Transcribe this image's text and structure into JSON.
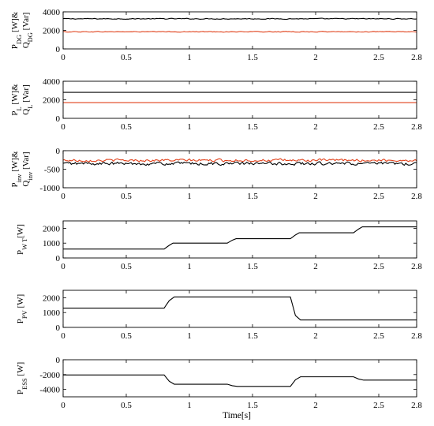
{
  "chart_data": [
    {
      "type": "line",
      "ylabel": [
        "P",
        "DG",
        " [W]&",
        "Q",
        "DG",
        " [Var]"
      ],
      "xlim": [
        0,
        2.8
      ],
      "ylim": [
        0,
        4000
      ],
      "xticks": [
        "0",
        "0.5",
        "1",
        "1.5",
        "2",
        "2.5",
        "2.8"
      ],
      "yticks": [
        0,
        2000,
        4000
      ],
      "ytick_labels": [
        "0",
        "2000",
        "4000"
      ],
      "grid": false,
      "series": [
        {
          "color": "#000000",
          "style": "noise",
          "x": [
            0,
            2.8
          ],
          "y": [
            3250,
            3250
          ],
          "noise": 70
        },
        {
          "color": "#e0401a",
          "style": "noise",
          "x": [
            0,
            2.8
          ],
          "y": [
            1850,
            1850
          ],
          "noise": 60
        }
      ]
    },
    {
      "type": "line",
      "ylabel": [
        "P",
        "L",
        " [W]&",
        "Q",
        "L",
        " [Var]"
      ],
      "xlim": [
        0,
        2.8
      ],
      "ylim": [
        0,
        4000
      ],
      "xticks": [
        "0",
        "0.5",
        "1",
        "1.5",
        "2",
        "2.5",
        "2.8"
      ],
      "yticks": [
        0,
        2000,
        4000
      ],
      "ytick_labels": [
        "0",
        "2000",
        "4000"
      ],
      "grid": false,
      "series": [
        {
          "color": "#000000",
          "style": "flat",
          "x": [
            0,
            2.8
          ],
          "y": [
            2800,
            2800
          ]
        },
        {
          "color": "#e0401a",
          "style": "flat",
          "x": [
            0,
            2.8
          ],
          "y": [
            1700,
            1700
          ]
        }
      ]
    },
    {
      "type": "line",
      "ylabel": [
        "P",
        "inv",
        " [W]&",
        "Q",
        "inv",
        " [Var]"
      ],
      "xlim": [
        0,
        2.8
      ],
      "ylim": [
        -1000,
        0
      ],
      "xticks": [
        "0",
        "0.5",
        "1",
        "1.5",
        "2",
        "2.5",
        "2.8"
      ],
      "yticks": [
        -1000,
        -500,
        0
      ],
      "ytick_labels": [
        "-1000",
        "-500",
        "0"
      ],
      "grid": false,
      "series": [
        {
          "color": "#e0401a",
          "style": "noise",
          "x": [
            0,
            2.8
          ],
          "y": [
            -260,
            -260
          ],
          "noise": 55
        },
        {
          "color": "#000000",
          "style": "noise",
          "x": [
            0,
            2.8
          ],
          "y": [
            -350,
            -350
          ],
          "noise": 65
        }
      ]
    },
    {
      "type": "line",
      "ylabel": [
        "P",
        "W T",
        "[W]"
      ],
      "xlim": [
        0,
        2.8
      ],
      "ylim": [
        0,
        2500
      ],
      "xticks": [
        "0",
        "0.5",
        "1",
        "1.5",
        "2",
        "2.5",
        "2.8"
      ],
      "yticks": [
        0,
        1000,
        2000
      ],
      "ytick_labels": [
        "0",
        "1000",
        "2000"
      ],
      "grid": false,
      "series": [
        {
          "color": "#000000",
          "style": "step",
          "x": [
            0,
            0.8,
            0.84,
            0.87,
            1.3,
            1.34,
            1.37,
            1.8,
            1.84,
            1.87,
            2.3,
            2.34,
            2.37,
            2.8
          ],
          "y": [
            600,
            600,
            850,
            1000,
            1000,
            1200,
            1300,
            1300,
            1550,
            1700,
            1700,
            1950,
            2100,
            2100
          ]
        }
      ]
    },
    {
      "type": "line",
      "ylabel": [
        "P",
        "PV",
        " [W]"
      ],
      "xlim": [
        0,
        2.8
      ],
      "ylim": [
        0,
        2500
      ],
      "xticks": [
        "0",
        "0.5",
        "1",
        "1.5",
        "2",
        "2.5",
        "2.8"
      ],
      "yticks": [
        0,
        1000,
        2000
      ],
      "ytick_labels": [
        "0",
        "1000",
        "2000"
      ],
      "grid": false,
      "series": [
        {
          "color": "#000000",
          "style": "step",
          "x": [
            0,
            0.8,
            0.84,
            0.88,
            1.8,
            1.84,
            1.88,
            2.8
          ],
          "y": [
            1300,
            1300,
            1800,
            2050,
            2050,
            800,
            500,
            500
          ]
        }
      ]
    },
    {
      "type": "line",
      "ylabel": [
        "P",
        "ESS",
        " [W]"
      ],
      "xlabel": "Time[s]",
      "xlim": [
        0,
        2.8
      ],
      "ylim": [
        -5000,
        0
      ],
      "xticks": [
        "0",
        "0.5",
        "1",
        "1.5",
        "2",
        "2.5",
        "2.8"
      ],
      "yticks": [
        -4000,
        -2000,
        0
      ],
      "ytick_labels": [
        "-4000",
        "-2000",
        "0"
      ],
      "grid": false,
      "series": [
        {
          "color": "#000000",
          "style": "step",
          "x": [
            0,
            0.8,
            0.84,
            0.88,
            1.3,
            1.34,
            1.38,
            1.8,
            1.84,
            1.88,
            2.3,
            2.34,
            2.38,
            2.8
          ],
          "y": [
            -2050,
            -2050,
            -2900,
            -3300,
            -3300,
            -3500,
            -3600,
            -3600,
            -2700,
            -2300,
            -2300,
            -2600,
            -2750,
            -2750
          ]
        }
      ]
    }
  ]
}
